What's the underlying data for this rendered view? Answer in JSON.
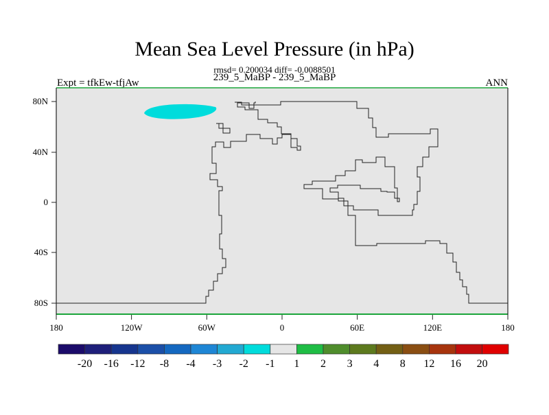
{
  "figure": {
    "title": "Mean Sea Level Pressure (in hPa)",
    "subtitle": "rmsd= 0.200034 diff= -0.0088501",
    "left_label": "Expt = tfkEw-tfjAw",
    "center_label": "239_5_MaBP - 239_5_MaBP",
    "right_label": "ANN"
  },
  "map": {
    "background_color": "#e6e6e6",
    "coastline_color": "#222222",
    "anomaly_color": "#00dcdc",
    "axis_ticks_x": [
      "180",
      "120W",
      "60W",
      "0",
      "60E",
      "120E",
      "180"
    ],
    "axis_ticks_y": [
      "80N",
      "40N",
      "0",
      "40S",
      "80S"
    ]
  },
  "colorbar": {
    "labels": [
      "-20",
      "-16",
      "-12",
      "-8",
      "-4",
      "-3",
      "-2",
      "-1",
      "1",
      "2",
      "3",
      "4",
      "8",
      "12",
      "16",
      "20"
    ],
    "colors": [
      "#1b0b6a",
      "#1e1f7a",
      "#16358e",
      "#1b4fa8",
      "#1468c0",
      "#1e86d5",
      "#22a9d2",
      "#00dcdc",
      "#e6e6e6",
      "#1fbd45",
      "#4f8d2c",
      "#5d7a1e",
      "#735f14",
      "#8a4e12",
      "#a7340d",
      "#c20d0d",
      "#e00000"
    ]
  }
}
